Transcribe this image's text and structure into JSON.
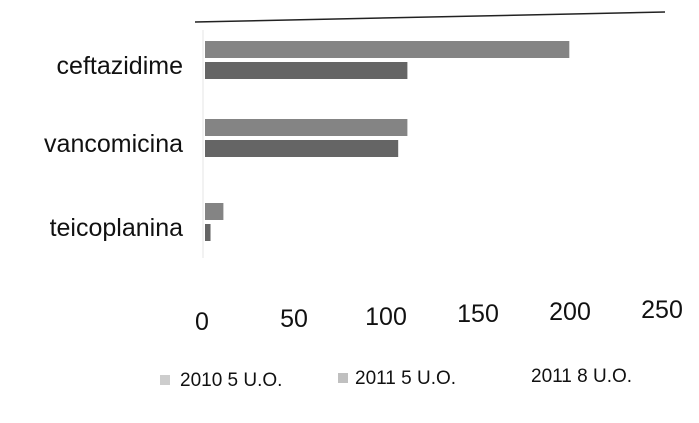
{
  "chart_data": {
    "type": "bar",
    "orientation": "horizontal",
    "categories": [
      "ceftazidime",
      "vancomicina",
      "teicoplanina"
    ],
    "series": [
      {
        "name": "2010 5 U.O.",
        "values": [
          198,
          110,
          10
        ],
        "color": "#6f6f6f"
      },
      {
        "name": "2011 5 U.O.",
        "values": [
          110,
          105,
          3
        ],
        "color": "#4a4a4a"
      },
      {
        "name": "2011 8 U.O.",
        "values": [
          0,
          0,
          0
        ],
        "color": "#1f1f1f"
      }
    ],
    "xlim": [
      0,
      250
    ],
    "xticks": [
      "0",
      "50",
      "100",
      "150",
      "200",
      "250"
    ],
    "grid": false,
    "legend_position": "bottom"
  }
}
